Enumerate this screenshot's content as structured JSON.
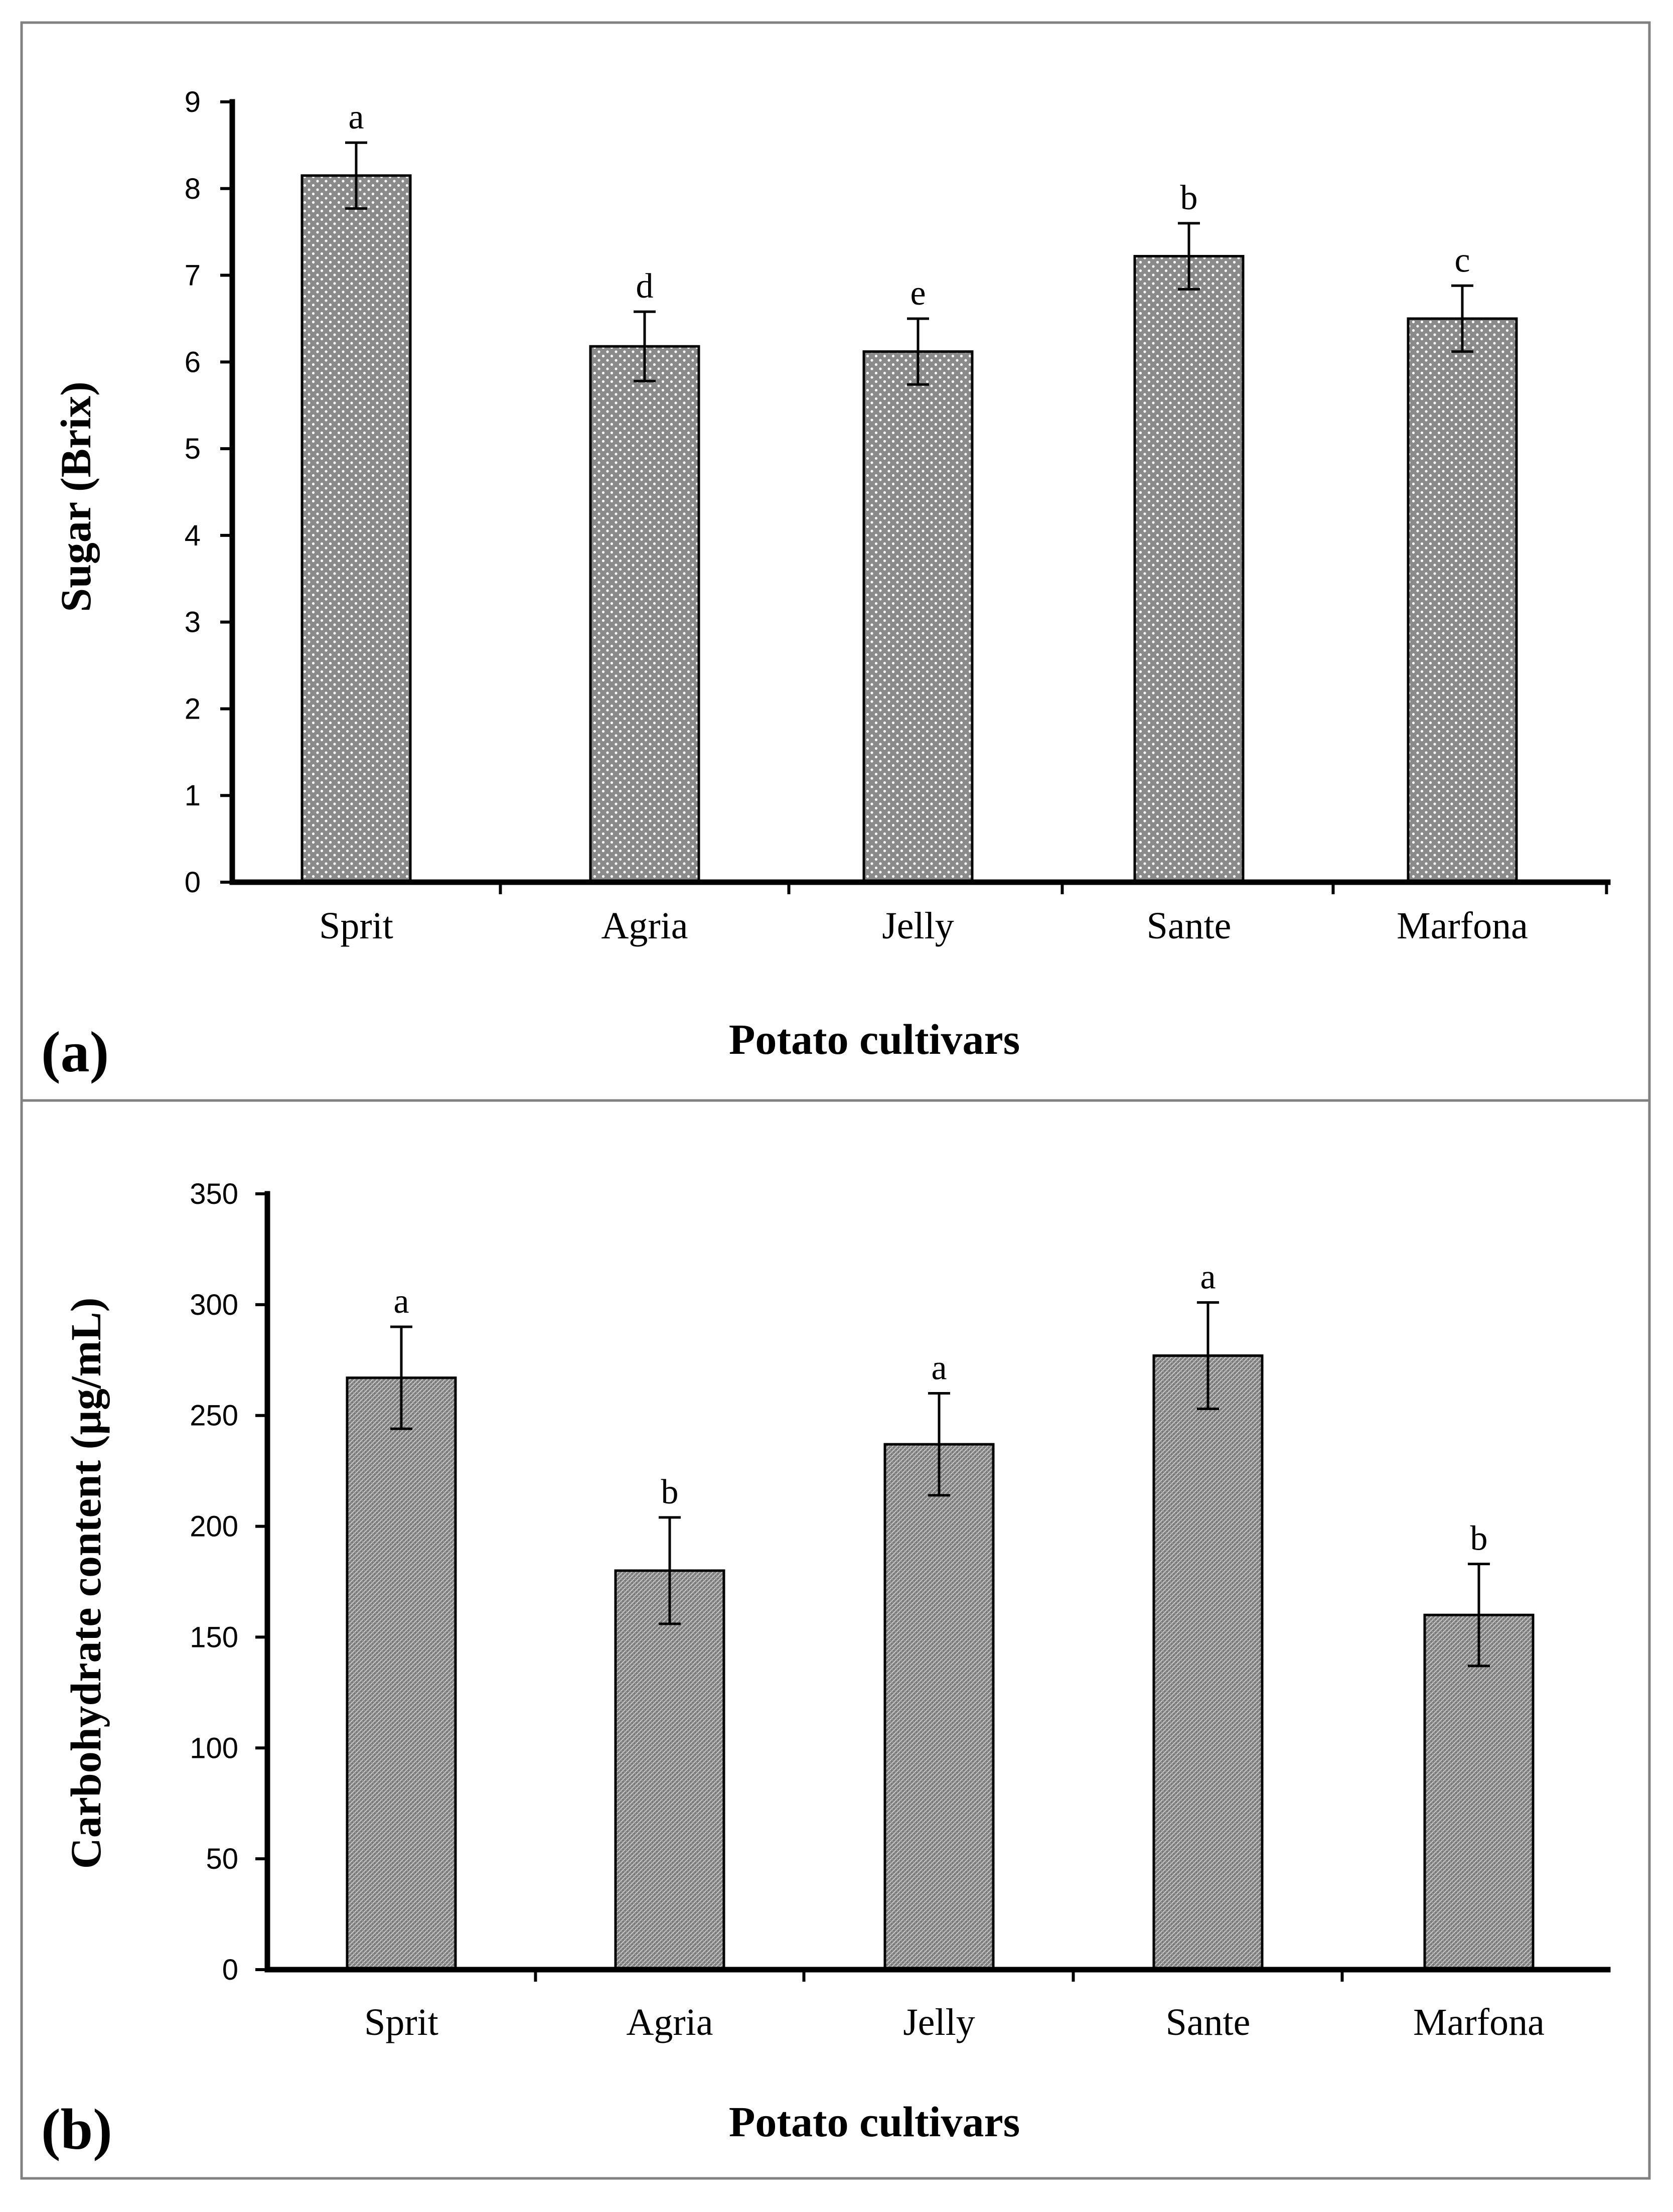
{
  "chart_data": [
    {
      "type": "bar",
      "panel_label": "(a)",
      "categories": [
        "Sprit",
        "Agria",
        "Jelly",
        "Sante",
        "Marfona"
      ],
      "values": [
        8.15,
        6.18,
        6.12,
        7.22,
        6.5
      ],
      "errors": [
        0.38,
        0.4,
        0.38,
        0.38,
        0.38
      ],
      "significance": [
        "a",
        "d",
        "e",
        "b",
        "c"
      ],
      "xlabel": "Potato cultivars",
      "ylabel": "Sugar (Brix)",
      "ylim": [
        0,
        9
      ],
      "yticks": [
        0,
        1,
        2,
        3,
        4,
        5,
        6,
        7,
        8,
        9
      ],
      "bar_fill": "dotted grey",
      "grid": false
    },
    {
      "type": "bar",
      "panel_label": "(b)",
      "categories": [
        "Sprit",
        "Agria",
        "Jelly",
        "Sante",
        "Marfona"
      ],
      "values": [
        267,
        180,
        237,
        277,
        160
      ],
      "errors": [
        23,
        24,
        23,
        24,
        23
      ],
      "significance": [
        "a",
        "b",
        "a",
        "a",
        "b"
      ],
      "xlabel": "Potato cultivars",
      "ylabel": "Carbohydrate content (µg/mL)",
      "ylim": [
        0,
        350
      ],
      "yticks": [
        0,
        50,
        100,
        150,
        200,
        250,
        300,
        350
      ],
      "bar_fill": "hatched grey",
      "grid": false
    }
  ]
}
